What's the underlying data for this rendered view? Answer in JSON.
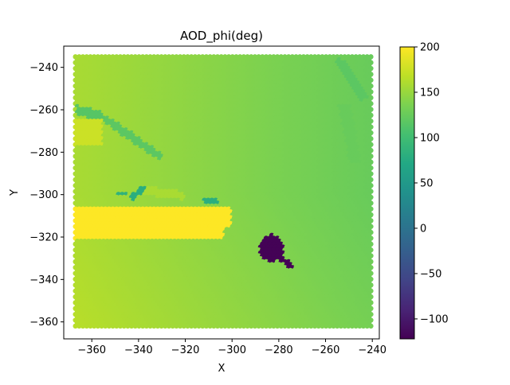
{
  "chart_data": {
    "type": "scatter",
    "title": "AOD_phi(deg)",
    "xlabel": "X",
    "ylabel": "Y",
    "xlim": [
      -372,
      -237
    ],
    "ylim": [
      -368,
      -230
    ],
    "xticks": [
      -360,
      -340,
      -320,
      -300,
      -280,
      -260,
      -240
    ],
    "xtick_labels": [
      "−360",
      "−340",
      "−320",
      "−300",
      "−280",
      "−260",
      "−240"
    ],
    "yticks": [
      -240,
      -260,
      -280,
      -300,
      -320,
      -340,
      -360
    ],
    "ytick_labels": [
      "−240",
      "−260",
      "−280",
      "−300",
      "−320",
      "−340",
      "−360"
    ],
    "grid": false,
    "colormap": "viridis",
    "colorbar": {
      "range": [
        -122,
        200
      ],
      "ticks": [
        200,
        150,
        100,
        50,
        0,
        -50,
        -100
      ],
      "tick_labels": [
        "200",
        "150",
        "100",
        "50",
        "0",
        "−50",
        "−100"
      ]
    },
    "grid_extent": {
      "x": [
        -367,
        -240
      ],
      "y": [
        -362.5,
        -235
      ]
    },
    "background_field": "phi ≈ 160 at x=-367 to ≈ 125 at x=-240; slight increase toward lower y",
    "regions": [
      {
        "name": "high band",
        "value": 200,
        "x": [
          -367,
          -300
        ],
        "y": [
          -321,
          -306
        ]
      },
      {
        "name": "minimum patch",
        "value": -120,
        "center": [
          -283,
          -326
        ]
      },
      {
        "name": "upper-left streak",
        "value": 115,
        "x": [
          -367,
          -330
        ],
        "y": [
          -275,
          -258
        ]
      },
      {
        "name": "lower streak",
        "value": 90,
        "x": [
          -350,
          -306
        ],
        "y": [
          -305,
          -296
        ]
      },
      {
        "name": "right streak",
        "value": 120,
        "x": [
          -255,
          -238
        ],
        "y": [
          -285,
          -236
        ]
      }
    ]
  }
}
